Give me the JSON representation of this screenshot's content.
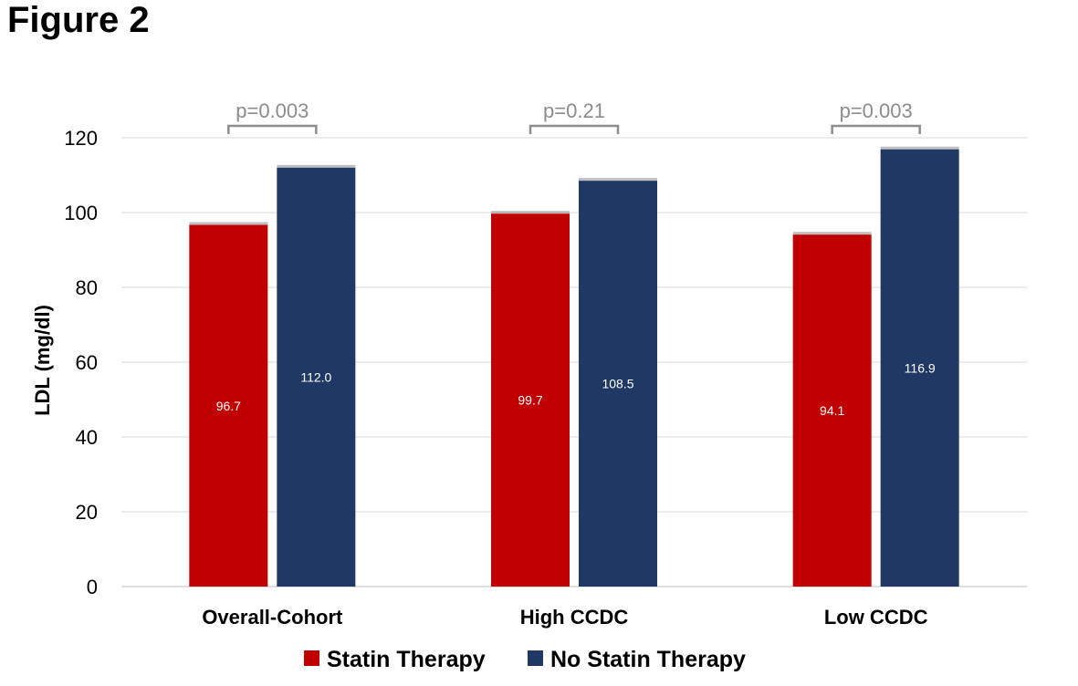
{
  "figure_title": "Figure 2",
  "chart_data": {
    "type": "bar",
    "title": "",
    "xlabel": "",
    "ylabel": "LDL  (mg/dl)",
    "ylim": [
      0,
      120
    ],
    "yticks": [
      0,
      20,
      40,
      60,
      80,
      100,
      120
    ],
    "grid": true,
    "legend_position": "bottom",
    "categories": [
      "Overall-Cohort",
      "High CCDC",
      "Low CCDC"
    ],
    "series": [
      {
        "name": "Statin Therapy",
        "color": "#c00000",
        "values": [
          96.7,
          99.7,
          94.1
        ],
        "labels": [
          "96.7",
          "99.7",
          "94.1"
        ]
      },
      {
        "name": "No Statin Therapy",
        "color": "#1f3864",
        "values": [
          112.0,
          108.5,
          116.9
        ],
        "labels": [
          "112.0",
          "108.5",
          "116.9"
        ]
      }
    ],
    "annotations": [
      "p=0.003",
      "p=0.21",
      "p=0.003"
    ]
  }
}
